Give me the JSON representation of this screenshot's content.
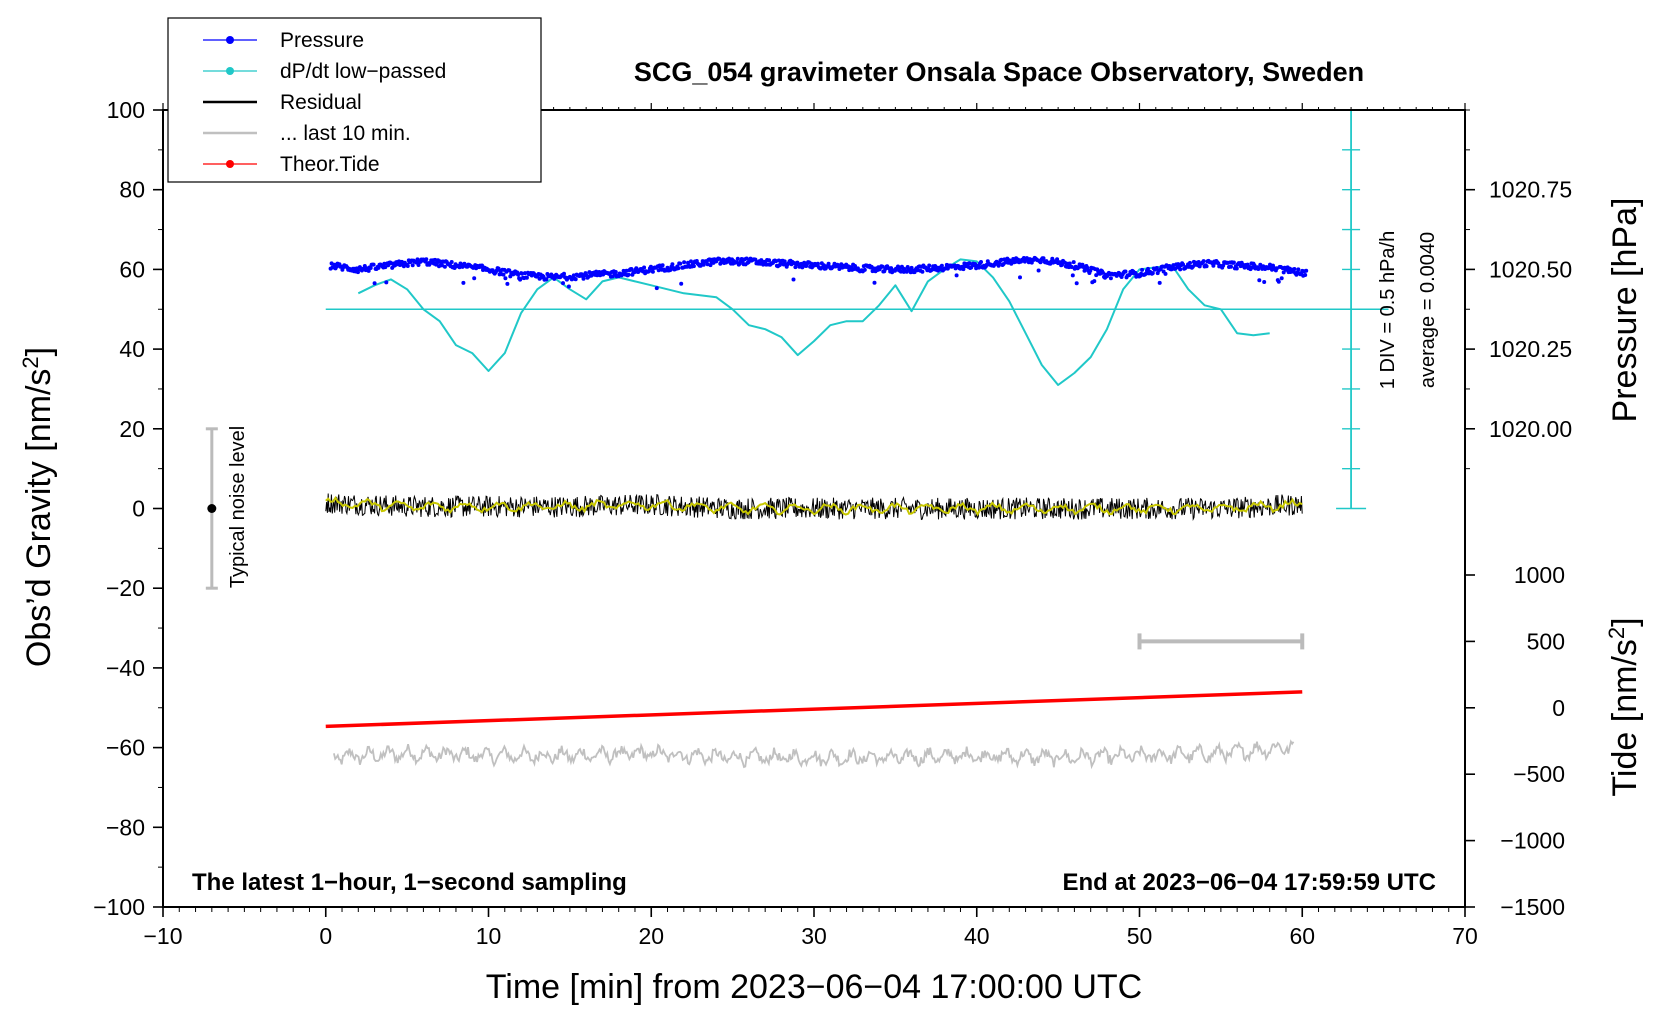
{
  "chart_data": {
    "type": "line",
    "title": "SCG_054 gravimeter Onsala Space Observatory, Sweden",
    "xlabel": "Time [min] from 2023−06−04 17:00:00 UTC",
    "ylabel": "Obs’d Gravity [nm/s²]",
    "ylabel_parts": {
      "main": "Obs’d Gravity [nm/s",
      "sup": "2",
      "close": "]"
    },
    "xlim": [
      -10,
      70
    ],
    "ylim": [
      -100,
      100
    ],
    "x_ticks": [
      {
        "v": -10,
        "label": "−10"
      },
      {
        "v": 0,
        "label": "0"
      },
      {
        "v": 10,
        "label": "10"
      },
      {
        "v": 20,
        "label": "20"
      },
      {
        "v": 30,
        "label": "30"
      },
      {
        "v": 40,
        "label": "40"
      },
      {
        "v": 50,
        "label": "50"
      },
      {
        "v": 60,
        "label": "60"
      },
      {
        "v": 70,
        "label": "70"
      }
    ],
    "y_ticks": [
      {
        "v": 100,
        "label": "100"
      },
      {
        "v": 80,
        "label": "80"
      },
      {
        "v": 60,
        "label": "60"
      },
      {
        "v": 40,
        "label": "40"
      },
      {
        "v": 20,
        "label": "20"
      },
      {
        "v": 0,
        "label": "0"
      },
      {
        "v": -20,
        "label": "−20"
      },
      {
        "v": -40,
        "label": "−40"
      },
      {
        "v": -60,
        "label": "−60"
      },
      {
        "v": -80,
        "label": "−80"
      },
      {
        "v": -100,
        "label": "−100"
      }
    ],
    "pressure_axis": {
      "label": "Pressure [hPa]",
      "ticks": [
        {
          "v": 1020.75,
          "label": "1020.75",
          "y": 80
        },
        {
          "v": 1020.5,
          "label": "1020.50",
          "y": 60
        },
        {
          "v": 1020.25,
          "label": "1020.25",
          "y": 40
        },
        {
          "v": 1020.0,
          "label": "1020.00",
          "y": 20
        }
      ]
    },
    "tide_axis": {
      "label": "Tide [nm/s²]",
      "label_parts": {
        "main": "Tide [nm/s",
        "sup": "2",
        "close": "]"
      },
      "ticks": [
        {
          "v": 1000,
          "label": "1000"
        },
        {
          "v": 500,
          "label": "500"
        },
        {
          "v": 0,
          "label": "0"
        },
        {
          "v": -500,
          "label": "−500"
        },
        {
          "v": -1000,
          "label": "−1000"
        },
        {
          "v": -1500,
          "label": "−1500"
        }
      ],
      "range": [
        -1500,
        1000
      ]
    },
    "legend": [
      {
        "name": "Pressure",
        "color": "#0000ff",
        "marker": true
      },
      {
        "name": "dP/dt low−passed",
        "color": "#20c8c8",
        "marker": true
      },
      {
        "name": "Residual",
        "color": "#000000",
        "marker": false
      },
      {
        "name": "... last 10 min.",
        "color": "#c0c0c0",
        "marker": false
      },
      {
        "name": "Theor.Tide",
        "color": "#ff0000",
        "marker": true
      }
    ],
    "series": [
      {
        "name": "Pressure",
        "color": "#0000ff",
        "x": [
          0.3,
          2,
          4,
          6,
          8,
          10,
          12,
          14,
          16,
          18,
          20,
          22,
          24,
          26,
          28,
          30,
          32,
          34,
          36,
          38,
          40,
          42,
          44,
          46,
          48,
          50,
          52,
          54,
          56,
          58,
          60.3
        ],
        "y": [
          61,
          60,
          61,
          62,
          61,
          60,
          58.5,
          58,
          58.5,
          59,
          60,
          61,
          62,
          62,
          61.5,
          61,
          60.5,
          60,
          60,
          60.5,
          61,
          62,
          62.5,
          61,
          58.5,
          59,
          60.5,
          61.5,
          61,
          60.5,
          59
        ]
      },
      {
        "name": "dP/dt low−passed",
        "color": "#20c8c8",
        "x": [
          2,
          3,
          4,
          5,
          6,
          7,
          8,
          9,
          10,
          11,
          12,
          13,
          14,
          15,
          16,
          17,
          18,
          19,
          20,
          22,
          24,
          25,
          26,
          27,
          28,
          29,
          30,
          31,
          32,
          33,
          34,
          35,
          36,
          37,
          38,
          39,
          40,
          41,
          42,
          43,
          44,
          45,
          46,
          47,
          48,
          49,
          50,
          51,
          52,
          53,
          54,
          55,
          56,
          57,
          58
        ],
        "y": [
          54,
          56,
          57.5,
          55,
          50,
          47,
          41,
          39,
          34.5,
          39,
          49,
          55,
          58,
          55,
          52.5,
          57,
          58,
          57,
          56,
          54,
          53,
          50,
          46,
          45,
          43,
          38.5,
          42,
          46,
          47,
          47,
          51,
          56,
          49.5,
          57,
          60,
          62.5,
          62,
          58,
          52,
          44,
          36,
          31,
          34,
          38,
          45,
          55,
          60,
          60.5,
          61,
          55,
          51,
          50,
          44,
          43.5,
          44
        ]
      },
      {
        "name": "Residual",
        "color": "#000000",
        "x": [
          0,
          5,
          10,
          15,
          20,
          25,
          30,
          35,
          40,
          45,
          50,
          55,
          60
        ],
        "y": [
          1.5,
          0.5,
          0.5,
          0.5,
          1,
          0,
          0,
          0,
          0,
          0,
          0,
          0,
          1
        ]
      },
      {
        "name": "... last 10 min.",
        "color": "#c0c0c0",
        "x": [
          0,
          5,
          10,
          15,
          20,
          25,
          30,
          35,
          40,
          45,
          50,
          55,
          60
        ],
        "y": [
          -62.5,
          -61.5,
          -62,
          -62,
          -61.5,
          -62.5,
          -62.5,
          -62.5,
          -62,
          -62.5,
          -62,
          -61.5,
          -59.5
        ]
      },
      {
        "name": "Theor.Tide",
        "color": "#ff0000",
        "axis": "tide",
        "x": [
          0,
          60
        ],
        "y": [
          -140,
          120
        ]
      }
    ],
    "pressure_rate_scale": {
      "x": 63,
      "y_top": 100,
      "y_bottom": 0,
      "divisions": 10,
      "label_div": "1 DIV = 0.5 hPa/h",
      "label_avg": "average = 0.0040",
      "zero_line_y": 50
    },
    "noise_bar": {
      "x": -7,
      "center": 0,
      "low": -20,
      "high": 20,
      "label": "Typical noise level"
    },
    "last10_bar": {
      "x_start": 50,
      "x_end": 60,
      "tide": 500
    },
    "annotations": {
      "bottom_left": "The latest 1−hour, 1−second sampling",
      "bottom_right": "End at 2023−06−04 17:59:59 UTC"
    }
  }
}
